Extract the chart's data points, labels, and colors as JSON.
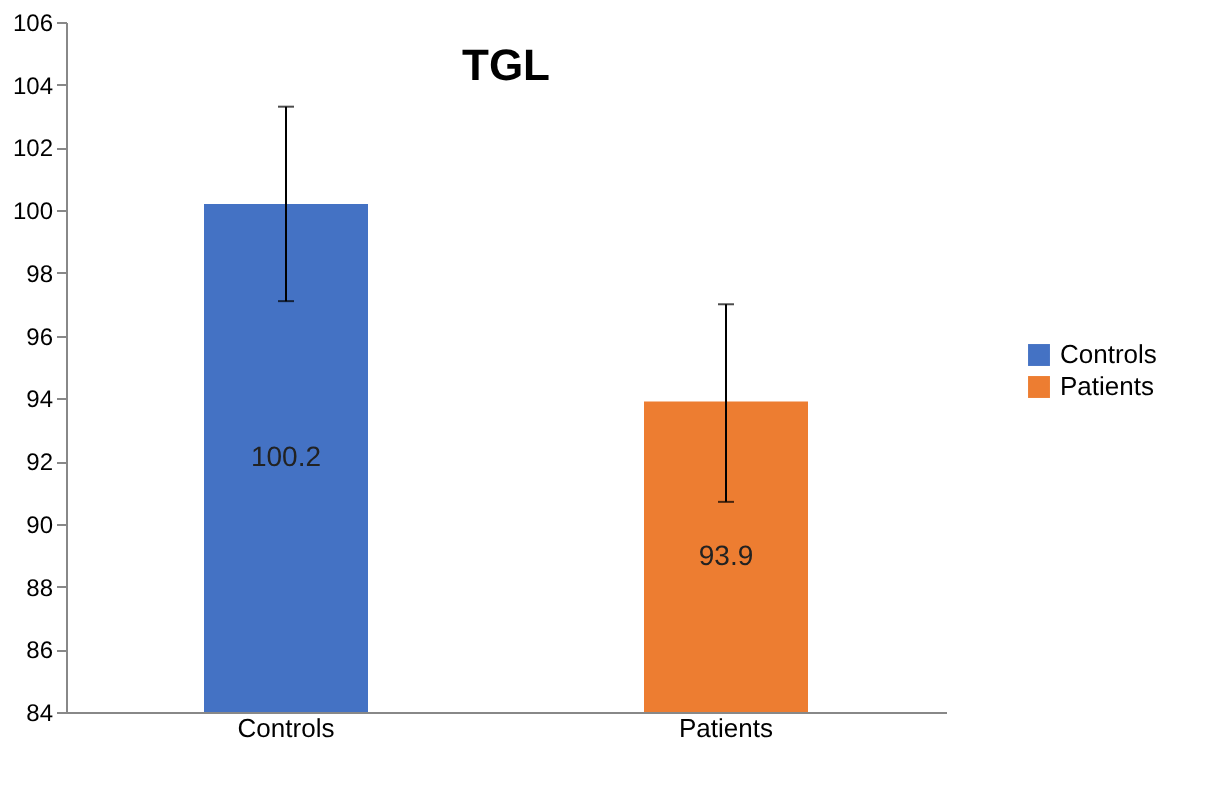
{
  "chart_data": {
    "type": "bar",
    "title": "TGL",
    "categories": [
      "Controls",
      "Patients"
    ],
    "series": [
      {
        "name": "Controls",
        "color": "#4472c4",
        "values": [
          100.2,
          null
        ],
        "errors": [
          [
            97.1,
            103.3
          ],
          null
        ]
      },
      {
        "name": "Patients",
        "color": "#ed7d31",
        "values": [
          null,
          93.9
        ],
        "errors": [
          null,
          [
            90.7,
            97.0
          ]
        ]
      }
    ],
    "ylim": [
      84,
      106
    ],
    "yticks": [
      84,
      86,
      88,
      90,
      92,
      94,
      96,
      98,
      100,
      102,
      104,
      106
    ],
    "data_labels": true,
    "legend": "right",
    "grid": false
  }
}
